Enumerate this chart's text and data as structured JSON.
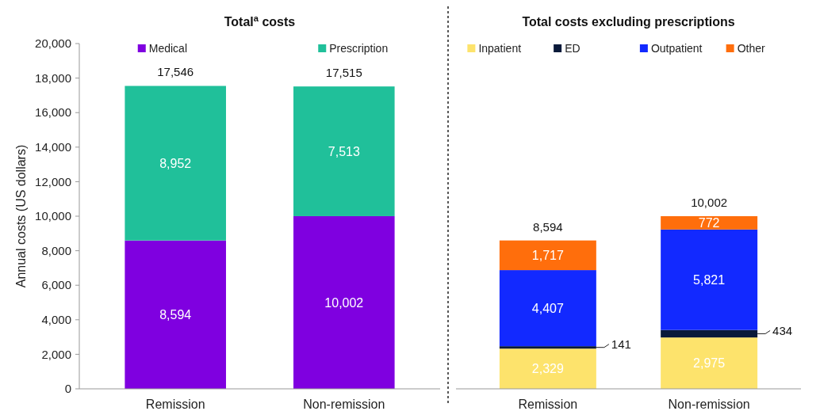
{
  "chart_data": [
    {
      "type": "bar",
      "title": "Total$^{a}$ costs",
      "ylabel": "Annual costs (US dollars)",
      "categories": [
        "Remission",
        "Non-remission"
      ],
      "stacked": true,
      "legend": "top",
      "ylim": [
        0,
        20000
      ],
      "yticks": [
        0,
        {
          "value": 2000,
          "label": "2,000"
        },
        {
          "value": 4000,
          "label": "4,000"
        },
        {
          "value": 6000,
          "label": "6,000"
        },
        {
          "value": 8000,
          "label": "8,000"
        },
        {
          "value": 10000,
          "label": "10,000"
        },
        {
          "value": 12000,
          "label": "12,000"
        },
        {
          "value": 14000,
          "label": "14,000"
        },
        {
          "value": 16000,
          "label": "16,000"
        },
        {
          "value": 18000,
          "label": "18,000"
        },
        {
          "value": 20000,
          "label": "20,000"
        }
      ],
      "totals": [
        "17,546",
        "17,515"
      ],
      "series": [
        {
          "name": "Medical",
          "color": "#7f00e0",
          "values": [
            8594,
            10002
          ],
          "value_labels": [
            "8,594",
            "10,002"
          ]
        },
        {
          "name": "Prescription",
          "color": "#20c09a",
          "values": [
            8952,
            7513
          ],
          "value_labels": [
            "8,952",
            "7,513"
          ]
        }
      ]
    },
    {
      "type": "bar",
      "title": "Total costs excluding prescriptions",
      "categories": [
        "Remission",
        "Non-remission"
      ],
      "stacked": true,
      "legend": "top",
      "ylim": [
        0,
        20000
      ],
      "tick_labels": "x",
      "totals": [
        "8,594",
        "10,002"
      ],
      "series": [
        {
          "name": "Inpatient",
          "color": "#fde36c",
          "values": [
            2329,
            2975
          ],
          "value_labels": [
            "2,329",
            "2,975"
          ]
        },
        {
          "name": "ED",
          "color": "#0a1a3a",
          "values": [
            141,
            434
          ],
          "value_labels": [
            "141",
            "434"
          ]
        },
        {
          "name": "Outpatient",
          "color": "#1229ff",
          "values": [
            4407,
            5821
          ],
          "value_labels": [
            "4,407",
            "5,821"
          ]
        },
        {
          "name": "Other",
          "color": "#ff6e0c",
          "values": [
            1717,
            772
          ],
          "value_labels": [
            "1,717",
            "772"
          ]
        }
      ]
    }
  ]
}
